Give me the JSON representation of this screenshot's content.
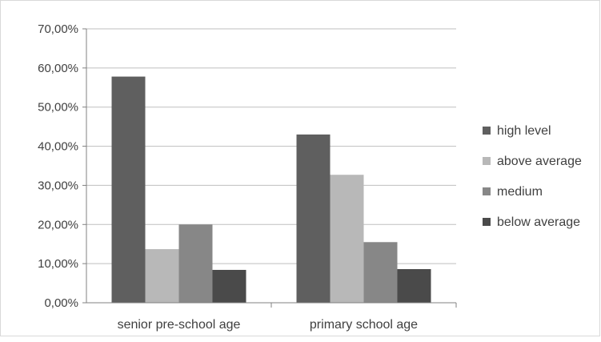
{
  "chart_data": {
    "type": "bar",
    "categories": [
      "senior pre-school age",
      "primary school age"
    ],
    "series": [
      {
        "name": "high level",
        "values": [
          57.8,
          43.0
        ],
        "color": "#5f5f5f"
      },
      {
        "name": "above average",
        "values": [
          13.7,
          32.7
        ],
        "color": "#b8b8b8"
      },
      {
        "name": "medium",
        "values": [
          20.0,
          15.5
        ],
        "color": "#878787"
      },
      {
        "name": "below average",
        "values": [
          8.4,
          8.6
        ],
        "color": "#4a4a4a"
      }
    ],
    "y_ticks": [
      "0,00%",
      "10,00%",
      "20,00%",
      "30,00%",
      "40,00%",
      "50,00%",
      "60,00%",
      "70,00%"
    ],
    "ylim": [
      0,
      70
    ],
    "grid": true,
    "legend_position": "right"
  }
}
